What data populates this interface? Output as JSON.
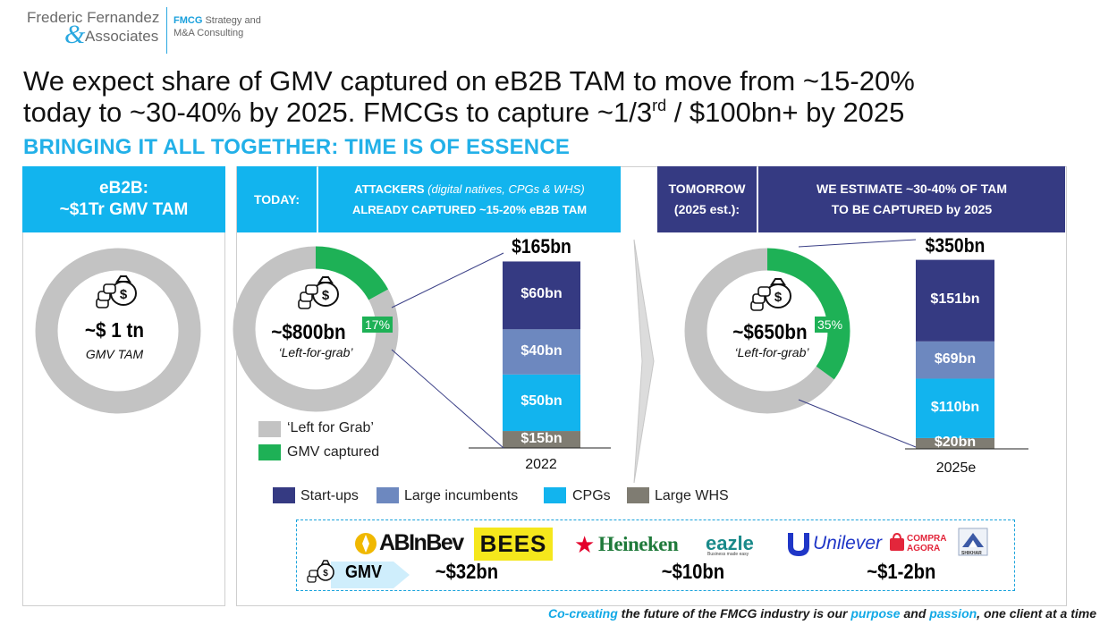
{
  "logo": {
    "line1": "Frederic Fernandez",
    "amp": "&",
    "line2": "Associates",
    "tag_brand": "FMCG",
    "tag1_rest": " Strategy and",
    "tag2": "M&A Consulting"
  },
  "headline": {
    "line1": "We expect share of GMV captured on eB2B TAM to move from ~15-20%",
    "line2_a": "today to ~30-40% by 2025. FMCGs to capture ~1/3",
    "line2_sup": "rd",
    "line2_b": " / $100bn+ by 2025"
  },
  "subheadline": "BRINGING IT ALL TOGETHER: TIME IS OF ESSENCE",
  "panels": {
    "tam": {
      "hdr1": "eB2B:",
      "hdr2": "~$1Tr GMV TAM",
      "value": "~$ 1 tn",
      "caption": "GMV TAM"
    },
    "today": {
      "label": "TODAY:",
      "attack1_a": "ATTACKERS ",
      "attack1_b": "(digital natives, CPGs & WHS)",
      "attack2": "ALREADY CAPTURED ~15-20% eB2B TAM",
      "value": "~$800bn",
      "caption": "‘Left-for-grab’",
      "pct": "17%"
    },
    "tomorrow": {
      "label1": "TOMORROW",
      "label2": "(2025 est.):",
      "est1": "WE ESTIMATE ~30-40%  OF TAM",
      "est2": "TO BE CAPTURED by 2025",
      "value": "~$650bn",
      "caption": "‘Left-for-grab’",
      "pct": "35%"
    }
  },
  "donut_legend": [
    {
      "label": "‘Left for Grab’",
      "color": "#c3c3c3"
    },
    {
      "label": "GMV captured",
      "color": "#1eb156"
    }
  ],
  "chart_data": [
    {
      "type": "pie",
      "variant": "donut",
      "categories": [
        "Left for Grab",
        "GMV captured"
      ],
      "values": [
        100,
        0
      ],
      "colors": [
        "#c3c3c3",
        "#1eb156"
      ],
      "center_label": "~$ 1 tn",
      "center_caption": "GMV TAM"
    },
    {
      "type": "pie",
      "variant": "donut",
      "categories": [
        "Left for Grab",
        "GMV captured"
      ],
      "values": [
        83,
        17
      ],
      "colors": [
        "#c3c3c3",
        "#1eb156"
      ],
      "center_label": "~$800bn",
      "center_caption": "‘Left-for-grab’",
      "slice_label": "17%"
    },
    {
      "type": "bar",
      "stacked": true,
      "categories": [
        "2022"
      ],
      "series": [
        {
          "name": "Large WHS",
          "values": [
            15
          ],
          "label": "$15bn",
          "color": "#7f7c72"
        },
        {
          "name": "CPGs",
          "values": [
            50
          ],
          "label": "$50bn",
          "color": "#12b4ee"
        },
        {
          "name": "Large incumbents",
          "values": [
            40
          ],
          "label": "$40bn",
          "color": "#6d88bf"
        },
        {
          "name": "Start-ups",
          "values": [
            60
          ],
          "label": "$60bn",
          "color": "#353a82"
        }
      ],
      "total_label": "$165bn"
    },
    {
      "type": "pie",
      "variant": "donut",
      "categories": [
        "Left for Grab",
        "GMV captured"
      ],
      "values": [
        65,
        35
      ],
      "colors": [
        "#c3c3c3",
        "#1eb156"
      ],
      "center_label": "~$650bn",
      "center_caption": "‘Left-for-grab’",
      "slice_label": "35%"
    },
    {
      "type": "bar",
      "stacked": true,
      "categories": [
        "2025e"
      ],
      "series": [
        {
          "name": "Large WHS",
          "values": [
            20
          ],
          "label": "$20bn",
          "color": "#7f7c72"
        },
        {
          "name": "CPGs",
          "values": [
            110
          ],
          "label": "$110bn",
          "color": "#12b4ee"
        },
        {
          "name": "Large incumbents",
          "values": [
            69
          ],
          "label": "$69bn",
          "color": "#6d88bf"
        },
        {
          "name": "Start-ups",
          "values": [
            151
          ],
          "label": "$151bn",
          "color": "#353a82"
        }
      ],
      "total_label": "$350bn"
    }
  ],
  "bar_legend": [
    {
      "label": "Start-ups",
      "color": "#353a82"
    },
    {
      "label": "Large incumbents",
      "color": "#6d88bf"
    },
    {
      "label": "CPGs",
      "color": "#12b4ee"
    },
    {
      "label": "Large WHS",
      "color": "#7f7c72"
    }
  ],
  "brands": {
    "gmv_tag": "GMV",
    "groups": [
      {
        "logos": [
          "ABInBev",
          "BEES"
        ],
        "value": "~$32bn"
      },
      {
        "logos": [
          "Heineken",
          "eazle"
        ],
        "value": "~$10bn"
      },
      {
        "logos": [
          "Unilever",
          "COMPRA AGORA",
          "SHIKHAR"
        ],
        "value": "~$1-2bn"
      }
    ],
    "eazle_tag": "Business made easy"
  },
  "footer": {
    "a": "Co-creating",
    "b": " the future of the FMCG industry is our ",
    "c": "purpose",
    "d": " and ",
    "e": "passion",
    "f": ", one client at a time"
  }
}
